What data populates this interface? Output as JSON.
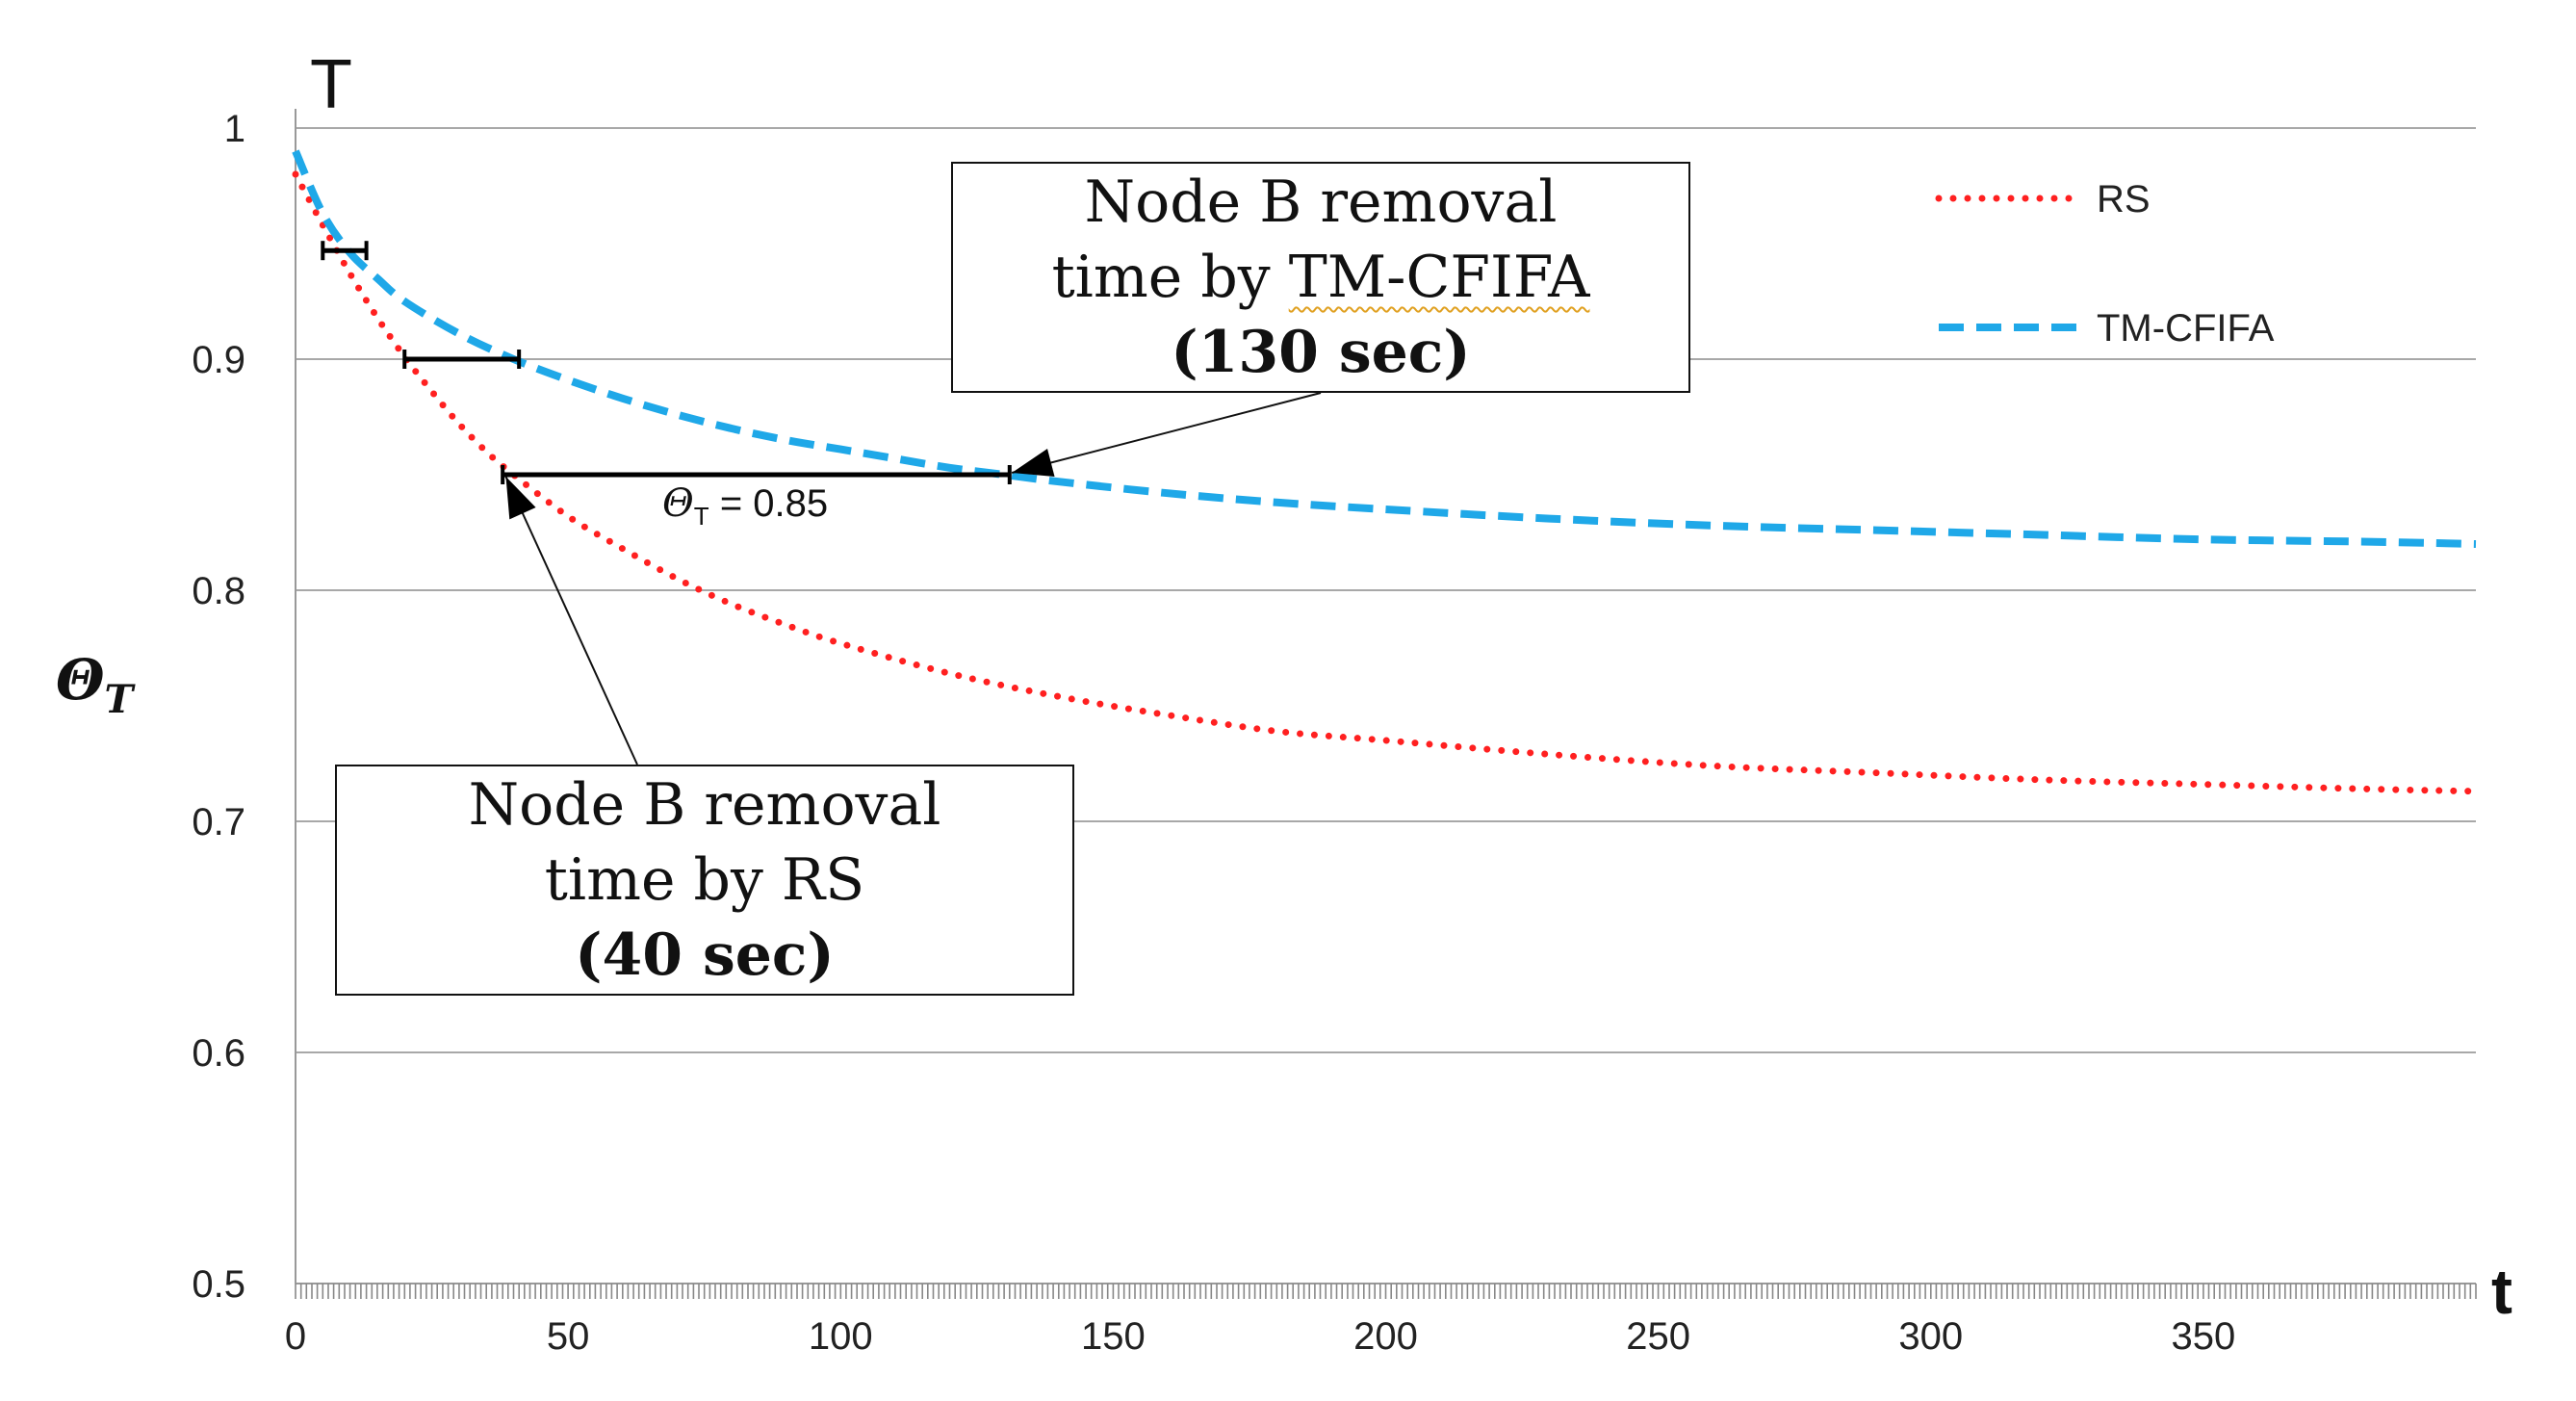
{
  "chart_data": {
    "type": "line",
    "title": "",
    "axis_top_label": "T",
    "xlabel": "t",
    "ylabel": "Θ",
    "ylabel_subscript": "T",
    "xlim": [
      0,
      400
    ],
    "ylim": [
      0.5,
      1.0
    ],
    "xticks": [
      0,
      50,
      100,
      150,
      200,
      250,
      300,
      350
    ],
    "yticks": [
      0.5,
      0.6,
      0.7,
      0.8,
      0.9,
      1.0
    ],
    "ytick_labels": [
      "0.5",
      "0.6",
      "0.7",
      "0.8",
      "0.9",
      "1"
    ],
    "grid": true,
    "legend_position": "top-right",
    "series": [
      {
        "name": "RS",
        "color": "#ff2020",
        "style": "dotted",
        "x": [
          0,
          5,
          10,
          15,
          20,
          25,
          30,
          35,
          40,
          50,
          60,
          70,
          80,
          90,
          100,
          120,
          140,
          160,
          180,
          200,
          230,
          260,
          290,
          320,
          350,
          380,
          400
        ],
        "y": [
          0.98,
          0.958,
          0.937,
          0.918,
          0.901,
          0.886,
          0.872,
          0.86,
          0.85,
          0.832,
          0.818,
          0.805,
          0.794,
          0.785,
          0.777,
          0.764,
          0.754,
          0.746,
          0.739,
          0.735,
          0.729,
          0.724,
          0.721,
          0.718,
          0.716,
          0.714,
          0.713
        ]
      },
      {
        "name": "TM-CFIFA",
        "color": "#1fa8e8",
        "style": "dashed",
        "x": [
          0,
          5,
          10,
          15,
          20,
          30,
          40,
          50,
          60,
          70,
          80,
          90,
          100,
          110,
          120,
          130,
          140,
          160,
          180,
          200,
          230,
          260,
          290,
          320,
          350,
          380,
          400
        ],
        "y": [
          0.99,
          0.963,
          0.946,
          0.935,
          0.925,
          0.911,
          0.9,
          0.891,
          0.883,
          0.876,
          0.87,
          0.865,
          0.861,
          0.857,
          0.853,
          0.85,
          0.847,
          0.842,
          0.838,
          0.835,
          0.831,
          0.828,
          0.826,
          0.824,
          0.822,
          0.821,
          0.82
        ]
      }
    ],
    "annotations": {
      "threshold_label": "= 0.85",
      "threshold_symbol": "Θ",
      "threshold_subscript": "T",
      "threshold_value": 0.85,
      "gap_markers": [
        {
          "y": 0.947,
          "x_start": 5,
          "x_end": 13
        },
        {
          "y": 0.9,
          "x_start": 20,
          "x_end": 41
        },
        {
          "y": 0.85,
          "x_start": 38,
          "x_end": 131
        }
      ],
      "tm_box": {
        "line1": "Node B removal",
        "line2_prefix": "time by ",
        "line2_term": "TM-CFIFA",
        "line3": "(130 sec)",
        "points_to": [
          130,
          0.85
        ]
      },
      "rs_box": {
        "line1": "Node B removal",
        "line2": "time by RS",
        "line3": "(40 sec)",
        "points_to": [
          40,
          0.85
        ]
      }
    }
  }
}
